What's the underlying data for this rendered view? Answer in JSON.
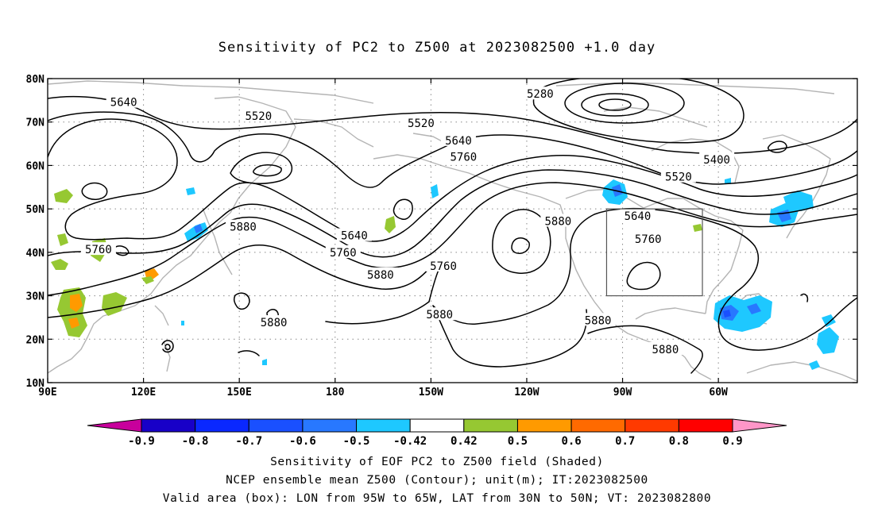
{
  "title": "Sensitivity of PC2 to Z500 at 2023082500 +1.0 day",
  "map": {
    "lat_labels": [
      "80N",
      "70N",
      "60N",
      "50N",
      "40N",
      "30N",
      "20N",
      "10N"
    ],
    "lon_labels": [
      "90E",
      "120E",
      "150E",
      "180",
      "150W",
      "120W",
      "90W",
      "60W"
    ],
    "contour_labels": [
      {
        "text": "5280",
        "lon": -115.8,
        "lat": 76.3
      },
      {
        "text": "5640",
        "lon": 113.8,
        "lat": 74.4
      },
      {
        "text": "5520",
        "lon": 156.0,
        "lat": 71.2
      },
      {
        "text": "5520",
        "lon": -153.1,
        "lat": 69.6
      },
      {
        "text": "5640",
        "lon": -141.4,
        "lat": 65.6
      },
      {
        "text": "5760",
        "lon": -139.8,
        "lat": 61.8
      },
      {
        "text": "5400",
        "lon": -60.5,
        "lat": 61.2
      },
      {
        "text": "5520",
        "lon": -72.5,
        "lat": 57.2
      },
      {
        "text": "5880",
        "lon": -110.2,
        "lat": 47.0
      },
      {
        "text": "5640",
        "lon": -85.3,
        "lat": 48.2
      },
      {
        "text": "5760",
        "lon": -82.0,
        "lat": 42.9
      },
      {
        "text": "5880",
        "lon": 151.2,
        "lat": 45.7
      },
      {
        "text": "5640",
        "lon": -174.0,
        "lat": 43.7
      },
      {
        "text": "5760",
        "lon": 105.9,
        "lat": 40.5
      },
      {
        "text": "5760",
        "lon": -177.5,
        "lat": 39.8
      },
      {
        "text": "5760",
        "lon": -146.1,
        "lat": 36.7
      },
      {
        "text": "5880",
        "lon": -165.8,
        "lat": 34.7
      },
      {
        "text": "5880",
        "lon": 160.8,
        "lat": 23.7
      },
      {
        "text": "5880",
        "lon": -147.3,
        "lat": 25.5
      },
      {
        "text": "5880",
        "lon": -97.7,
        "lat": 24.2
      },
      {
        "text": "5880",
        "lon": -76.6,
        "lat": 17.5
      }
    ],
    "valid_box": {
      "lon_min": -95,
      "lon_max": -65,
      "lat_min": 30,
      "lat_max": 50
    }
  },
  "colorbar": {
    "colors": [
      "#c8009c",
      "#1800c8",
      "#0a28ff",
      "#1a50ff",
      "#2878ff",
      "#1ec8ff",
      "#ffffff",
      "#96c832",
      "#ff9a00",
      "#ff6a00",
      "#ff3a00",
      "#ff0000",
      "#ff96c8"
    ],
    "labels": [
      "-0.9",
      "-0.8",
      "-0.7",
      "-0.6",
      "-0.5",
      "-0.42",
      "0.42",
      "0.5",
      "0.6",
      "0.7",
      "0.8",
      "0.9"
    ]
  },
  "caption": {
    "line1": "Sensitivity of EOF PC2 to Z500 field (Shaded)",
    "line2": "NCEP ensemble mean Z500 (Contour); unit(m); IT:2023082500",
    "line3": "Valid area (box): LON from 95W to 65W, LAT from 30N to 50N; VT: 2023082800"
  }
}
